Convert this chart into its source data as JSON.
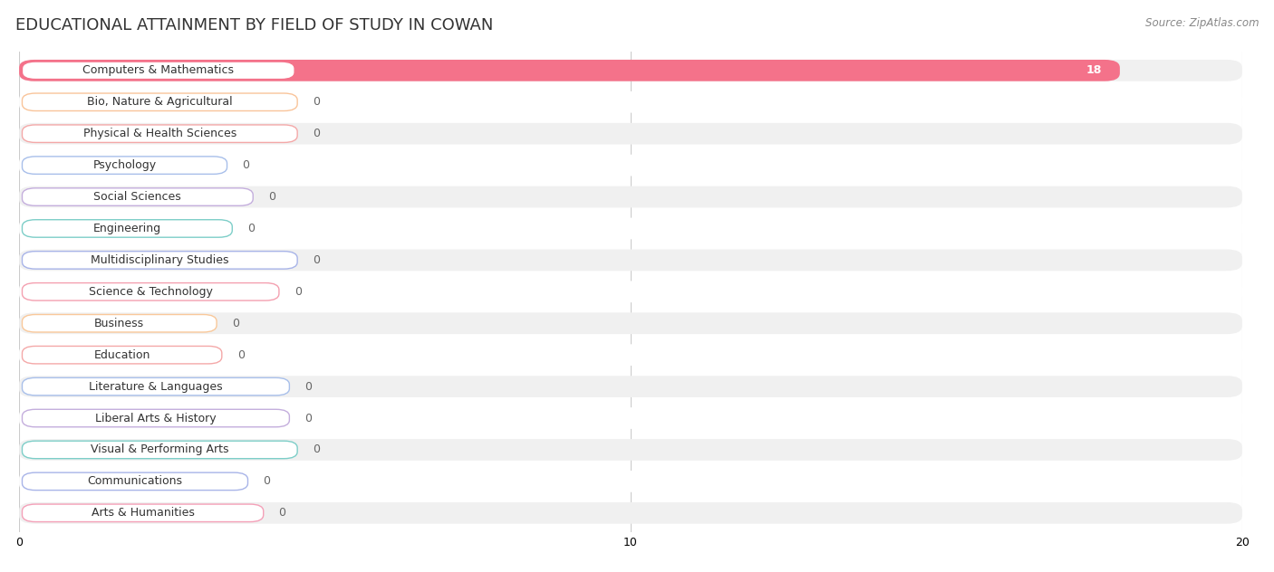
{
  "title": "EDUCATIONAL ATTAINMENT BY FIELD OF STUDY IN COWAN",
  "source": "Source: ZipAtlas.com",
  "categories": [
    "Computers & Mathematics",
    "Bio, Nature & Agricultural",
    "Physical & Health Sciences",
    "Psychology",
    "Social Sciences",
    "Engineering",
    "Multidisciplinary Studies",
    "Science & Technology",
    "Business",
    "Education",
    "Literature & Languages",
    "Liberal Arts & History",
    "Visual & Performing Arts",
    "Communications",
    "Arts & Humanities"
  ],
  "values": [
    18,
    0,
    0,
    0,
    0,
    0,
    0,
    0,
    0,
    0,
    0,
    0,
    0,
    0,
    0
  ],
  "bar_colors": [
    "#F4728A",
    "#F9C49A",
    "#F4A8A8",
    "#A8BFEA",
    "#C4AEDD",
    "#7DCEC8",
    "#A8B4E8",
    "#F4A0B0",
    "#F9C89A",
    "#F4A8A8",
    "#A8BFEA",
    "#C4AEDD",
    "#7DCEC8",
    "#A8B4E8",
    "#F4A0B8"
  ],
  "background_row_colors": [
    "#f0f0f0",
    "#ffffff"
  ],
  "xlim": [
    0,
    20
  ],
  "xticks": [
    0,
    10,
    20
  ],
  "title_fontsize": 13,
  "bar_height": 0.68,
  "label_fontsize": 9,
  "value_fontsize": 9,
  "bg_color": "#ffffff"
}
